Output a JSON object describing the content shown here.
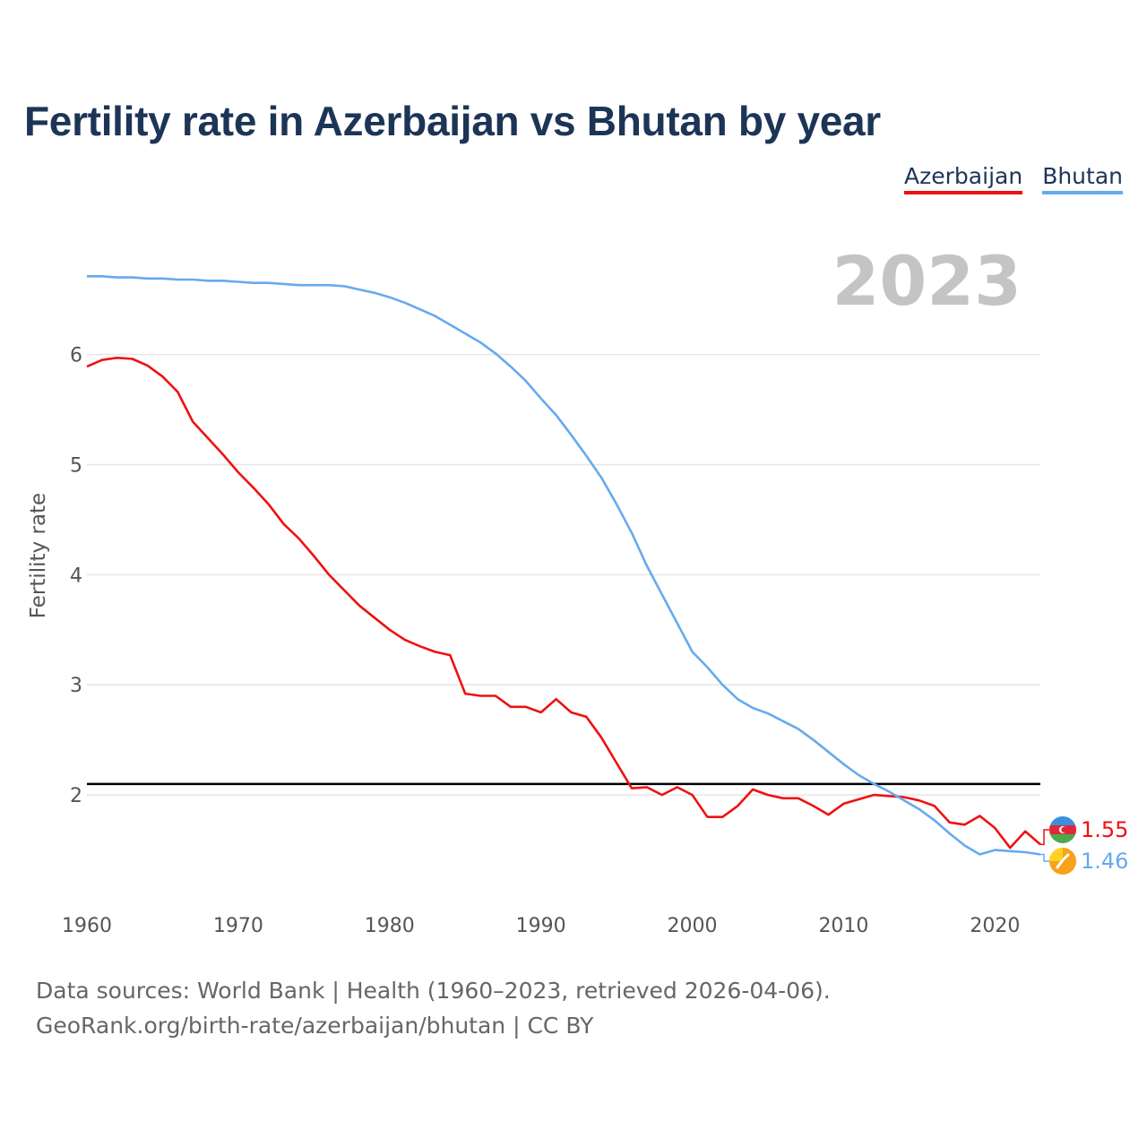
{
  "title": "Fertility rate in Azerbaijan vs Bhutan by year",
  "year_label": "2023",
  "footer": {
    "sources": "Data sources: World Bank | Health (1960–2023, retrieved 2026-04-06).",
    "credit": "GeoRank.org/birth-rate/azerbaijan/bhutan | CC BY"
  },
  "colors": {
    "Azerbaijan": "#ee1111",
    "Bhutan": "#66aaee",
    "reference": "#000000",
    "grid": "#e6e6e6"
  },
  "chart_data": {
    "type": "line",
    "title": "Fertility rate in Azerbaijan vs Bhutan by year",
    "xlabel": "",
    "ylabel": "Fertility rate",
    "xlim": [
      1960,
      2023
    ],
    "ylim": [
      1.0,
      6.9
    ],
    "x_ticks": [
      1960,
      1970,
      1980,
      1990,
      2000,
      2010,
      2020
    ],
    "y_ticks": [
      2,
      3,
      4,
      5,
      6
    ],
    "reference_line": 2.1,
    "legend_position": "top-right",
    "x": [
      1960,
      1961,
      1962,
      1963,
      1964,
      1965,
      1966,
      1967,
      1968,
      1969,
      1970,
      1971,
      1972,
      1973,
      1974,
      1975,
      1976,
      1977,
      1978,
      1979,
      1980,
      1981,
      1982,
      1983,
      1984,
      1985,
      1986,
      1987,
      1988,
      1989,
      1990,
      1991,
      1992,
      1993,
      1994,
      1995,
      1996,
      1997,
      1998,
      1999,
      2000,
      2001,
      2002,
      2003,
      2004,
      2005,
      2006,
      2007,
      2008,
      2009,
      2010,
      2011,
      2012,
      2013,
      2014,
      2015,
      2016,
      2017,
      2018,
      2019,
      2020,
      2021,
      2022,
      2023
    ],
    "series": [
      {
        "name": "Azerbaijan",
        "end_label": "1.55",
        "flag_icon": "azerbaijan-flag-icon",
        "values": [
          5.89,
          5.95,
          5.97,
          5.96,
          5.9,
          5.8,
          5.66,
          5.39,
          5.24,
          5.09,
          4.93,
          4.79,
          4.64,
          4.46,
          4.33,
          4.17,
          4.0,
          3.86,
          3.72,
          3.61,
          3.5,
          3.41,
          3.35,
          3.3,
          3.27,
          2.92,
          2.9,
          2.9,
          2.8,
          2.8,
          2.75,
          2.87,
          2.75,
          2.71,
          2.52,
          2.29,
          2.06,
          2.07,
          2.0,
          2.07,
          2.0,
          1.8,
          1.8,
          1.9,
          2.05,
          2.0,
          1.97,
          1.97,
          1.9,
          1.82,
          1.92,
          1.96,
          2.0,
          1.99,
          1.98,
          1.95,
          1.9,
          1.75,
          1.73,
          1.81,
          1.7,
          1.52,
          1.67,
          1.55
        ]
      },
      {
        "name": "Bhutan",
        "end_label": "1.46",
        "flag_icon": "bhutan-flag-icon",
        "values": [
          6.71,
          6.71,
          6.7,
          6.7,
          6.69,
          6.69,
          6.68,
          6.68,
          6.67,
          6.67,
          6.66,
          6.65,
          6.65,
          6.64,
          6.63,
          6.63,
          6.63,
          6.62,
          6.59,
          6.56,
          6.52,
          6.47,
          6.41,
          6.35,
          6.27,
          6.19,
          6.11,
          6.01,
          5.89,
          5.76,
          5.6,
          5.45,
          5.27,
          5.08,
          4.88,
          4.64,
          4.38,
          4.08,
          3.82,
          3.56,
          3.3,
          3.16,
          3.0,
          2.87,
          2.79,
          2.74,
          2.67,
          2.6,
          2.5,
          2.39,
          2.28,
          2.18,
          2.1,
          2.03,
          1.95,
          1.87,
          1.77,
          1.65,
          1.54,
          1.46,
          1.5,
          1.49,
          1.48,
          1.46
        ]
      }
    ]
  }
}
